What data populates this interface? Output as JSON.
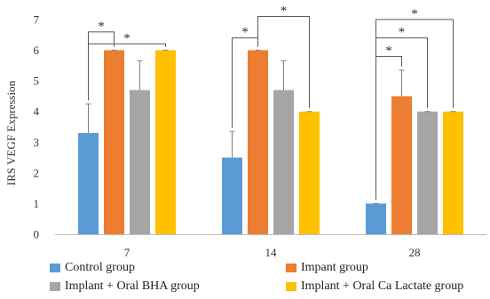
{
  "chart_data": {
    "type": "bar",
    "title": "",
    "xlabel": "",
    "ylabel": "IRS VEGF Expression",
    "ylim": [
      0,
      7
    ],
    "yticks": [
      0,
      1,
      2,
      3,
      4,
      5,
      6,
      7
    ],
    "categories": [
      "7",
      "14",
      "28"
    ],
    "grid": false,
    "legend_position": "bottom",
    "series": [
      {
        "name": "Control group",
        "color": "#5b9bd5",
        "values": [
          3.3,
          2.5,
          1.0
        ],
        "errors": [
          0.95,
          0.85,
          0.0
        ]
      },
      {
        "name": "Impant group",
        "color": "#ed7d31",
        "values": [
          6.0,
          6.0,
          4.5
        ],
        "errors": [
          0.0,
          0.0,
          0.85
        ]
      },
      {
        "name": "Implant + Oral BHA group",
        "color": "#a5a5a5",
        "values": [
          4.7,
          4.7,
          4.0
        ],
        "errors": [
          0.95,
          0.95,
          0.0
        ]
      },
      {
        "name": "Implant + Oral Ca Lactate group",
        "color": "#ffc000",
        "values": [
          6.0,
          4.0,
          4.0
        ],
        "errors": [
          0.0,
          0.0,
          0.0
        ]
      }
    ],
    "annotations": [
      {
        "category": 0,
        "from": 0,
        "to": 1,
        "y": 6.6,
        "label": "*"
      },
      {
        "category": 0,
        "from": 0,
        "to": 3,
        "y": 6.2,
        "label": "*"
      },
      {
        "category": 1,
        "from": 0,
        "to": 1,
        "y": 6.4,
        "label": "*"
      },
      {
        "category": 1,
        "from": 1,
        "to": 3,
        "y": 7.1,
        "label": "*"
      },
      {
        "category": 2,
        "from": 0,
        "to": 1,
        "y": 5.8,
        "label": "*"
      },
      {
        "category": 2,
        "from": 0,
        "to": 2,
        "y": 6.4,
        "label": "*"
      },
      {
        "category": 2,
        "from": 0,
        "to": 3,
        "y": 7.0,
        "label": "*"
      }
    ]
  }
}
